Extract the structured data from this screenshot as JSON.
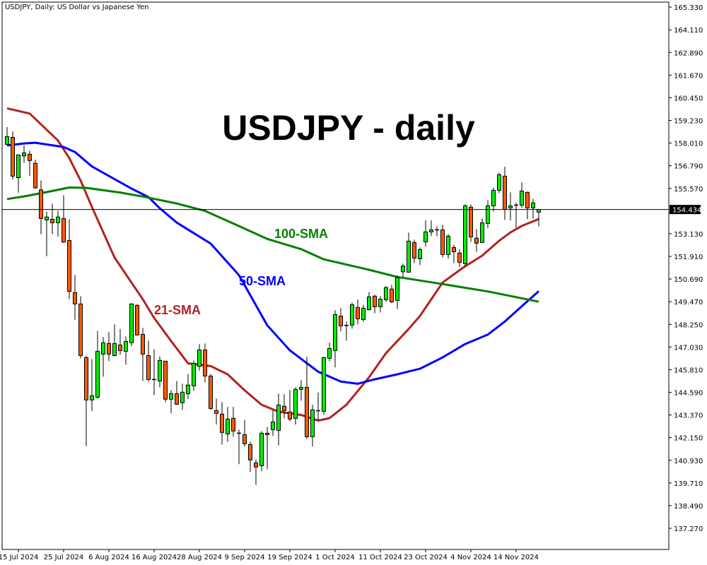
{
  "header": {
    "symbol_info": "USDJPY, Daily:  US Dollar vs Japanese Yen"
  },
  "chart_data": {
    "type": "candlestick",
    "title": "USDJPY - daily",
    "symbol": "USDJPY",
    "timeframe": "Daily",
    "ylim": [
      136.13,
      165.6
    ],
    "y_ticks": [
      "165.330",
      "164.110",
      "162.890",
      "161.670",
      "160.450",
      "159.230",
      "158.010",
      "156.790",
      "155.570",
      "153.130",
      "151.910",
      "150.690",
      "149.470",
      "148.250",
      "147.030",
      "145.810",
      "144.590",
      "143.370",
      "142.150",
      "140.930",
      "139.710",
      "138.490",
      "137.270"
    ],
    "x_ticks": [
      {
        "date": "2024-07-15",
        "label": "15 Jul 2024"
      },
      {
        "date": "2024-07-25",
        "label": "25 Jul 2024"
      },
      {
        "date": "2024-08-06",
        "label": "6 Aug 2024"
      },
      {
        "date": "2024-08-16",
        "label": "16 Aug 2024"
      },
      {
        "date": "2024-08-28",
        "label": "28 Aug 2024"
      },
      {
        "date": "2024-09-09",
        "label": "9 Sep 2024"
      },
      {
        "date": "2024-09-19",
        "label": "19 Sep 2024"
      },
      {
        "date": "2024-10-01",
        "label": "1 Oct 2024"
      },
      {
        "date": "2024-10-11",
        "label": "11 Oct 2024"
      },
      {
        "date": "2024-10-23",
        "label": "23 Oct 2024"
      },
      {
        "date": "2024-11-04",
        "label": "4 Nov 2024"
      },
      {
        "date": "2024-11-14",
        "label": "14 Nov 2024"
      }
    ],
    "current_price": "154.434",
    "colors": {
      "bull": "#00ee00",
      "bear": "#ff5a00",
      "outline": "#000000",
      "sma21": "#b22222",
      "sma50": "#0000ff",
      "sma100": "#008000"
    },
    "candle_fields": [
      "date",
      "open",
      "high",
      "low",
      "close"
    ],
    "candles": [
      [
        "2024-07-11",
        157.94,
        158.87,
        157.9,
        158.36
      ],
      [
        "2024-07-12",
        158.32,
        158.64,
        156.05,
        156.23
      ],
      [
        "2024-07-15",
        156.15,
        157.41,
        155.34,
        157.37
      ],
      [
        "2024-07-16",
        157.32,
        157.88,
        156.94,
        157.48
      ],
      [
        "2024-07-17",
        157.41,
        157.6,
        156.25,
        157.07
      ],
      [
        "2024-07-18",
        156.92,
        157.12,
        155.55,
        155.6
      ],
      [
        "2024-07-19",
        155.49,
        156.0,
        153.1,
        153.95
      ],
      [
        "2024-07-22",
        153.87,
        154.33,
        151.92,
        154.03
      ],
      [
        "2024-07-23",
        153.91,
        154.75,
        153.1,
        153.72
      ],
      [
        "2024-07-24",
        153.72,
        154.37,
        152.98,
        154.03
      ],
      [
        "2024-07-25",
        153.95,
        155.2,
        152.64,
        152.68
      ],
      [
        "2024-07-26",
        152.77,
        153.9,
        149.62,
        150.03
      ],
      [
        "2024-07-29",
        149.96,
        150.91,
        148.5,
        149.35
      ],
      [
        "2024-07-30",
        149.35,
        149.77,
        146.42,
        146.57
      ],
      [
        "2024-07-31",
        146.46,
        146.57,
        141.69,
        144.18
      ],
      [
        "2024-08-01",
        144.18,
        146.38,
        143.59,
        144.41
      ],
      [
        "2024-08-02",
        144.33,
        147.9,
        144.25,
        146.8
      ],
      [
        "2024-08-05",
        146.65,
        147.56,
        145.43,
        147.26
      ],
      [
        "2024-08-06",
        147.22,
        147.83,
        146.27,
        146.65
      ],
      [
        "2024-08-07",
        146.57,
        148.25,
        146.53,
        147.22
      ],
      [
        "2024-08-08",
        147.14,
        148.0,
        146.61,
        146.84
      ],
      [
        "2024-08-09",
        146.8,
        147.6,
        146.08,
        147.33
      ],
      [
        "2024-08-12",
        147.26,
        149.38,
        147.07,
        149.35
      ],
      [
        "2024-08-13",
        149.27,
        149.35,
        147.64,
        147.68
      ],
      [
        "2024-08-14",
        147.71,
        148.06,
        145.2,
        146.65
      ],
      [
        "2024-08-15",
        146.57,
        147.37,
        145.17,
        145.28
      ],
      [
        "2024-08-16",
        145.28,
        146.91,
        144.44,
        145.25
      ],
      [
        "2024-08-19",
        145.2,
        146.53,
        144.86,
        146.31
      ],
      [
        "2024-08-20",
        146.27,
        146.27,
        144.06,
        144.22
      ],
      [
        "2024-08-21",
        144.22,
        144.71,
        143.46,
        144.52
      ],
      [
        "2024-08-22",
        144.52,
        145.2,
        143.91,
        143.95
      ],
      [
        "2024-08-23",
        144.03,
        145.05,
        143.65,
        144.6
      ],
      [
        "2024-08-26",
        144.52,
        145.58,
        144.22,
        144.98
      ],
      [
        "2024-08-27",
        144.94,
        146.31,
        144.67,
        146.15
      ],
      [
        "2024-08-28",
        145.99,
        147.18,
        145.77,
        146.87
      ],
      [
        "2024-08-29",
        146.87,
        147.22,
        145.13,
        145.47
      ],
      [
        "2024-08-30",
        145.47,
        145.58,
        143.65,
        143.72
      ],
      [
        "2024-09-02",
        143.61,
        144.25,
        142.85,
        143.46
      ],
      [
        "2024-09-03",
        143.42,
        144.06,
        141.78,
        142.43
      ],
      [
        "2024-09-04",
        142.35,
        143.8,
        141.93,
        143.15
      ],
      [
        "2024-09-05",
        143.19,
        143.8,
        142.2,
        142.51
      ],
      [
        "2024-09-06",
        142.39,
        142.58,
        140.72,
        142.39
      ],
      [
        "2024-09-09",
        142.31,
        143.11,
        141.67,
        141.82
      ],
      [
        "2024-09-10",
        141.78,
        141.93,
        140.3,
        140.95
      ],
      [
        "2024-09-11",
        140.79,
        140.98,
        139.61,
        140.57
      ],
      [
        "2024-09-12",
        140.64,
        142.5,
        140.34,
        142.39
      ],
      [
        "2024-09-13",
        142.39,
        142.73,
        140.45,
        142.31
      ],
      [
        "2024-09-16",
        142.58,
        143.61,
        142.25,
        143.0
      ],
      [
        "2024-09-17",
        142.54,
        144.52,
        141.73,
        143.91
      ],
      [
        "2024-09-18",
        143.84,
        144.48,
        143.19,
        143.61
      ],
      [
        "2024-09-19",
        143.53,
        144.71,
        143.03,
        143.15
      ],
      [
        "2024-09-20",
        143.19,
        144.86,
        142.85,
        144.75
      ],
      [
        "2024-09-23",
        144.75,
        145.24,
        144.14,
        144.86
      ],
      [
        "2024-09-24",
        144.86,
        146.5,
        142.08,
        142.2
      ],
      [
        "2024-09-25",
        142.2,
        143.92,
        141.67,
        143.65
      ],
      [
        "2024-09-26",
        143.57,
        144.58,
        143.07,
        143.6
      ],
      [
        "2024-09-27",
        143.57,
        146.5,
        143.38,
        146.46
      ],
      [
        "2024-09-30",
        146.42,
        147.26,
        146.27,
        146.95
      ],
      [
        "2024-10-01",
        146.84,
        149.01,
        145.93,
        148.78
      ],
      [
        "2024-10-02",
        148.7,
        149.12,
        147.87,
        148.17
      ],
      [
        "2024-10-03",
        148.18,
        148.4,
        147.37,
        148.19
      ],
      [
        "2024-10-04",
        148.21,
        149.42,
        148.02,
        149.31
      ],
      [
        "2024-10-07",
        149.16,
        149.58,
        148.25,
        148.55
      ],
      [
        "2024-10-08",
        148.51,
        149.31,
        148.4,
        149.12
      ],
      [
        "2024-10-09",
        149.04,
        149.99,
        149.0,
        149.73
      ],
      [
        "2024-10-10",
        149.77,
        149.84,
        148.85,
        149.2
      ],
      [
        "2024-10-11",
        149.2,
        149.77,
        148.89,
        149.61
      ],
      [
        "2024-10-14",
        149.58,
        150.31,
        149.46,
        150.23
      ],
      [
        "2024-10-15",
        150.15,
        150.38,
        149.39,
        149.46
      ],
      [
        "2024-10-16",
        149.54,
        150.88,
        149.08,
        150.76
      ],
      [
        "2024-10-17",
        151.08,
        151.52,
        150.79,
        151.39
      ],
      [
        "2024-10-18",
        151.06,
        153.19,
        151.02,
        152.73
      ],
      [
        "2024-10-21",
        152.66,
        152.81,
        151.55,
        151.82
      ],
      [
        "2024-10-22",
        151.78,
        152.39,
        151.44,
        152.28
      ],
      [
        "2024-10-23",
        152.69,
        153.85,
        152.43,
        153.23
      ],
      [
        "2024-10-24",
        153.23,
        153.85,
        153.0,
        153.34
      ],
      [
        "2024-10-25",
        153.34,
        153.53,
        153.0,
        153.32
      ],
      [
        "2024-10-28",
        153.34,
        153.61,
        151.86,
        152.01
      ],
      [
        "2024-10-29",
        152.01,
        153.11,
        151.78,
        153.0
      ],
      [
        "2024-10-30",
        152.39,
        152.54,
        151.55,
        152.16
      ],
      [
        "2024-10-31",
        152.09,
        152.28,
        151.33,
        151.59
      ],
      [
        "2024-11-01",
        151.52,
        154.71,
        151.39,
        154.63
      ],
      [
        "2024-11-04",
        154.56,
        154.71,
        152.69,
        152.96
      ],
      [
        "2024-11-05",
        152.89,
        153.38,
        152.16,
        152.62
      ],
      [
        "2024-11-06",
        152.66,
        153.96,
        152.62,
        153.72
      ],
      [
        "2024-11-07",
        153.68,
        154.94,
        153.42,
        154.63
      ],
      [
        "2024-11-08",
        154.63,
        155.62,
        154.33,
        155.47
      ],
      [
        "2024-11-11",
        155.47,
        156.42,
        155.32,
        156.31
      ],
      [
        "2024-11-12",
        156.23,
        156.73,
        153.87,
        154.44
      ],
      [
        "2024-11-13",
        154.52,
        155.36,
        153.84,
        154.63
      ],
      [
        "2024-11-14",
        154.66,
        154.79,
        153.46,
        154.67
      ],
      [
        "2024-11-15",
        154.67,
        155.89,
        154.52,
        155.43
      ],
      [
        "2024-11-18",
        155.36,
        155.4,
        153.91,
        154.52
      ],
      [
        "2024-11-19",
        154.52,
        155.01,
        153.95,
        154.79
      ],
      [
        "2024-11-20",
        154.29,
        154.44,
        153.53,
        154.434
      ]
    ],
    "series": [
      {
        "name": "21-SMA",
        "color": "#b22222",
        "points": [
          [
            "2024-07-11",
            159.88
          ],
          [
            "2024-07-17",
            159.6
          ],
          [
            "2024-07-24",
            158.15
          ],
          [
            "2024-07-26",
            157.2
          ],
          [
            "2024-07-30",
            156.0
          ],
          [
            "2024-08-01",
            154.57
          ],
          [
            "2024-08-07",
            151.85
          ],
          [
            "2024-08-14",
            149.6
          ],
          [
            "2024-08-16",
            148.6
          ],
          [
            "2024-08-21",
            147.35
          ],
          [
            "2024-08-26",
            146.15
          ],
          [
            "2024-08-30",
            146.0
          ],
          [
            "2024-09-04",
            145.56
          ],
          [
            "2024-09-09",
            144.7
          ],
          [
            "2024-09-12",
            143.92
          ],
          [
            "2024-09-17",
            143.55
          ],
          [
            "2024-09-23",
            143.37
          ],
          [
            "2024-09-26",
            143.07
          ],
          [
            "2024-09-30",
            143.2
          ],
          [
            "2024-10-03",
            143.92
          ],
          [
            "2024-10-09",
            145.4
          ],
          [
            "2024-10-14",
            146.7
          ],
          [
            "2024-10-18",
            148.0
          ],
          [
            "2024-10-22",
            148.7
          ],
          [
            "2024-10-28",
            150.5
          ],
          [
            "2024-10-30",
            150.95
          ],
          [
            "2024-11-01",
            151.38
          ],
          [
            "2024-11-06",
            151.95
          ],
          [
            "2024-11-11",
            152.75
          ],
          [
            "2024-11-13",
            153.2
          ],
          [
            "2024-11-15",
            153.55
          ],
          [
            "2024-11-20",
            153.92
          ]
        ]
      },
      {
        "name": "50-SMA",
        "color": "#0000ff",
        "points": [
          [
            "2024-07-11",
            157.88
          ],
          [
            "2024-07-16",
            157.99
          ],
          [
            "2024-07-18",
            158.03
          ],
          [
            "2024-07-25",
            157.8
          ],
          [
            "2024-07-29",
            157.53
          ],
          [
            "2024-08-01",
            156.75
          ],
          [
            "2024-08-08",
            155.9
          ],
          [
            "2024-08-12",
            155.56
          ],
          [
            "2024-08-15",
            155.1
          ],
          [
            "2024-08-19",
            154.5
          ],
          [
            "2024-08-22",
            153.73
          ],
          [
            "2024-08-30",
            152.6
          ],
          [
            "2024-09-06",
            150.9
          ],
          [
            "2024-09-13",
            148.2
          ],
          [
            "2024-09-19",
            146.85
          ],
          [
            "2024-09-26",
            145.7
          ],
          [
            "2024-10-02",
            145.17
          ],
          [
            "2024-10-07",
            145.05
          ],
          [
            "2024-10-10",
            145.29
          ],
          [
            "2024-10-16",
            145.56
          ],
          [
            "2024-10-22",
            145.86
          ],
          [
            "2024-10-28",
            146.47
          ],
          [
            "2024-11-01",
            147.19
          ],
          [
            "2024-11-07",
            147.7
          ],
          [
            "2024-11-12",
            148.4
          ],
          [
            "2024-11-14",
            148.95
          ],
          [
            "2024-11-20",
            150.04
          ]
        ]
      },
      {
        "name": "100-SMA",
        "color": "#008000",
        "points": [
          [
            "2024-07-11",
            155.0
          ],
          [
            "2024-07-16",
            155.14
          ],
          [
            "2024-07-22",
            155.37
          ],
          [
            "2024-07-26",
            155.62
          ],
          [
            "2024-07-31",
            155.6
          ],
          [
            "2024-08-08",
            155.35
          ],
          [
            "2024-08-14",
            155.13
          ],
          [
            "2024-08-22",
            154.76
          ],
          [
            "2024-08-29",
            154.36
          ],
          [
            "2024-09-05",
            153.68
          ],
          [
            "2024-09-13",
            152.85
          ],
          [
            "2024-09-23",
            152.3
          ],
          [
            "2024-09-27",
            151.75
          ],
          [
            "2024-10-09",
            151.19
          ],
          [
            "2024-10-16",
            150.8
          ],
          [
            "2024-10-28",
            150.42
          ],
          [
            "2024-11-07",
            150.02
          ],
          [
            "2024-11-20",
            149.47
          ]
        ]
      }
    ],
    "annotations": {
      "title": "USDJPY - daily",
      "sma21": "21-SMA",
      "sma50": "50-SMA",
      "sma100": "100-SMA"
    }
  }
}
